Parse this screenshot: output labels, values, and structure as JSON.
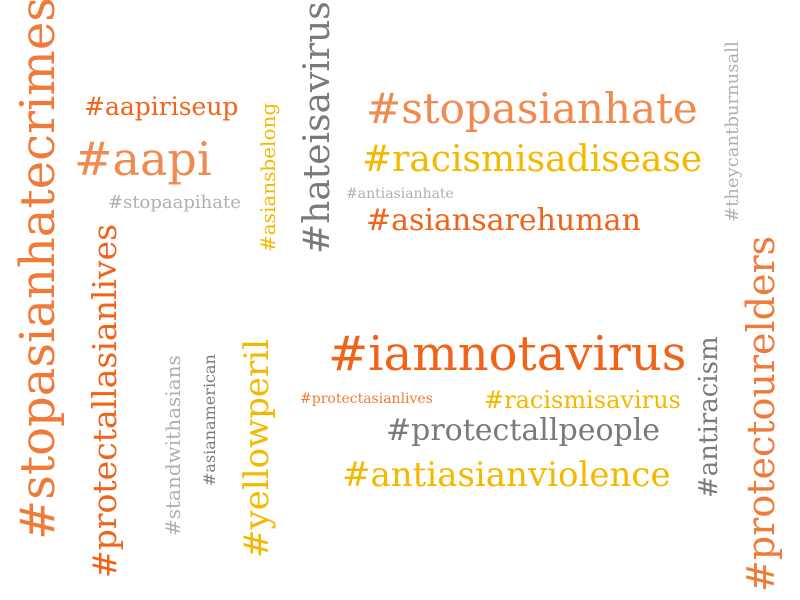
{
  "colors": {
    "orange": "#f07a3a",
    "light_orange": "#f08a50",
    "dark_orange": "#f0641a",
    "yellow": "#f5b800",
    "gray": "#7a7a7a",
    "light_gray": "#b0b0b0"
  },
  "words": {
    "stopasianhatecrimes": "#stopasianhatecrimes",
    "aapiriseup": "#aapiriseup",
    "aapi": "#aapi",
    "stopaapihate": "#stopaapihate",
    "asiansbelong": "#asiansbelong",
    "hateisavirus": "#hateisavirus",
    "stopasianhate": "#stopasianhate",
    "racismisadisease": "#racismisadisease",
    "antiasianhate": "#antiasianhate",
    "asiansarehuman": "#asiansarehuman",
    "theycantburnusall": "#theycantburnusall",
    "protectallasianlives": "#protectallasianlives",
    "standwithasians": "#standwithasians",
    "asianamerican": "#asianamerican",
    "yellowperil": "#yellowperil",
    "iamnotavirus": "#iamnotavirus",
    "protectasianlives": "#protectasianlives",
    "racismisavirus": "#racismisavirus",
    "protectallpeople": "#protectallpeople",
    "antiasianviolence": "#antiasianviolence",
    "antiracism": "#antiracism",
    "protectourelders": "#protectourelders"
  }
}
